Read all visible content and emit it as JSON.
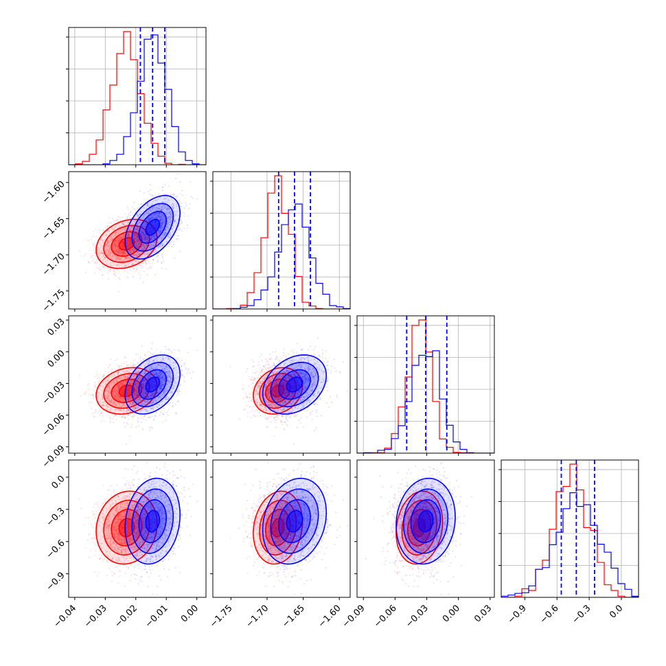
{
  "chart_data": {
    "type": "corner",
    "colors": {
      "red": "#ff0000",
      "blue": "#0000ff"
    },
    "parameters": [
      {
        "range": [
          -0.042,
          0.003
        ],
        "ticks": [
          -0.04,
          -0.03,
          -0.02,
          -0.01,
          0.0
        ],
        "tick_labels": [
          "−0.04",
          "−0.03",
          "−0.02",
          "−0.01",
          "0.00"
        ]
      },
      {
        "range": [
          -1.775,
          -1.585
        ],
        "ticks": [
          -1.75,
          -1.7,
          -1.65,
          -1.6
        ],
        "tick_labels": [
          "−1.75",
          "−1.70",
          "−1.65",
          "−1.60"
        ]
      },
      {
        "range": [
          -0.096,
          0.034
        ],
        "ticks": [
          -0.09,
          -0.06,
          -0.03,
          0.0,
          0.03
        ],
        "tick_labels": [
          "−0.09",
          "−0.06",
          "−0.03",
          "0.00",
          "0.03"
        ]
      },
      {
        "range": [
          -1.12,
          0.16
        ],
        "ticks": [
          -0.9,
          -0.6,
          -0.3,
          0.0
        ],
        "tick_labels": [
          "−0.9",
          "−0.6",
          "−0.3",
          "0.0"
        ]
      }
    ],
    "red": {
      "mean": [
        -0.023,
        -1.685,
        -0.037,
        -0.47
      ],
      "std": [
        0.005,
        0.017,
        0.011,
        0.17
      ],
      "corr": {
        "0-1": 0.25,
        "0-2": 0.2,
        "0-3": 0.1,
        "1-2": 0.2,
        "1-3": 0.15,
        "2-3": 0.15
      }
    },
    "blue": {
      "mean": [
        -0.0145,
        -1.662,
        -0.031,
        -0.41
      ],
      "std": [
        0.0045,
        0.022,
        0.014,
        0.2
      ],
      "corr": {
        "0-1": 0.45,
        "0-2": 0.35,
        "0-3": 0.15,
        "1-2": 0.3,
        "1-3": 0.2,
        "2-3": 0.1
      }
    },
    "quantile_lines": [
      [
        -0.0185,
        -0.0145,
        -0.0105
      ],
      [
        -1.684,
        -1.662,
        -1.64
      ],
      [
        -0.049,
        -0.031,
        -0.011
      ],
      [
        -0.56,
        -0.42,
        -0.25
      ]
    ]
  }
}
